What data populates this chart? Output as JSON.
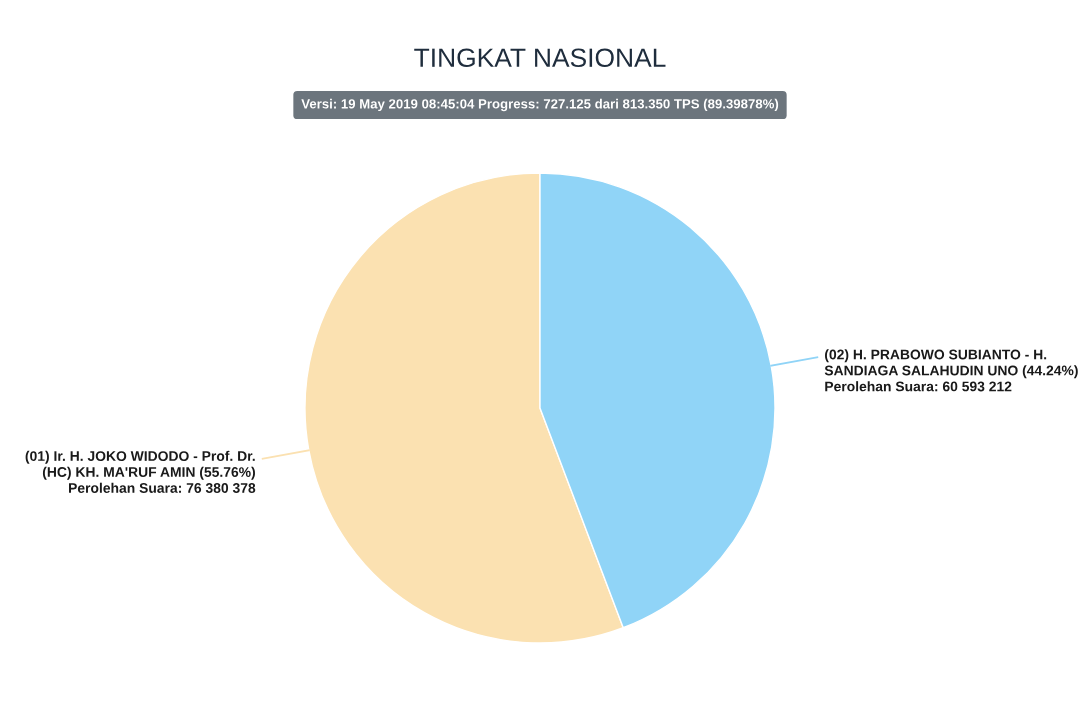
{
  "chart_data": {
    "type": "pie",
    "title": "TINGKAT NASIONAL",
    "subtitle": "Versi: 19 May 2019 08:45:04 Progress: 727.125 dari 813.350 TPS (89.39878%)",
    "categories": [
      "(01) Ir. H. JOKO WIDODO - Prof. Dr. (HC) KH. MA'RUF AMIN",
      "(02) H. PRABOWO SUBIANTO - H. SANDIAGA SALAHUDIN UNO"
    ],
    "values": [
      76380378,
      60593212
    ],
    "colors": [
      "#fbe1b1",
      "#90d4f7"
    ],
    "value_labels": [
      "(55.76%)\nPerolehan Suara: 76 380 378",
      "(44.24%)\nPerolehan Suara: 60 593 212"
    ],
    "legend": false
  }
}
